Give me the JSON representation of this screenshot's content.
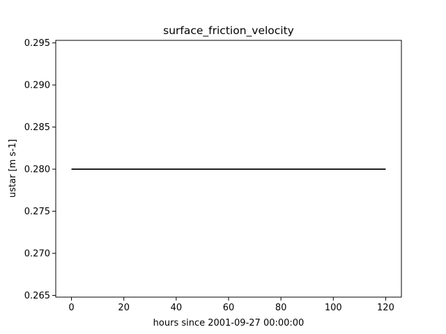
{
  "chart_data": {
    "type": "line",
    "title": "surface_friction_velocity",
    "xlabel": "hours since 2001-09-27 00:00:00",
    "ylabel": "ustar [m s-1]",
    "xlim": [
      -6,
      126
    ],
    "ylim": [
      0.2648,
      0.2953
    ],
    "x_ticks": [
      0,
      20,
      40,
      60,
      80,
      100,
      120
    ],
    "x_tick_labels": [
      "0",
      "20",
      "40",
      "60",
      "80",
      "100",
      "120"
    ],
    "y_ticks": [
      0.265,
      0.27,
      0.275,
      0.28,
      0.285,
      0.29,
      0.295
    ],
    "y_tick_labels": [
      "0.265",
      "0.270",
      "0.275",
      "0.280",
      "0.285",
      "0.290",
      "0.295"
    ],
    "grid": false,
    "series": [
      {
        "color": "#000000",
        "x": [
          0,
          120
        ],
        "y": [
          0.28,
          0.28
        ]
      }
    ]
  }
}
